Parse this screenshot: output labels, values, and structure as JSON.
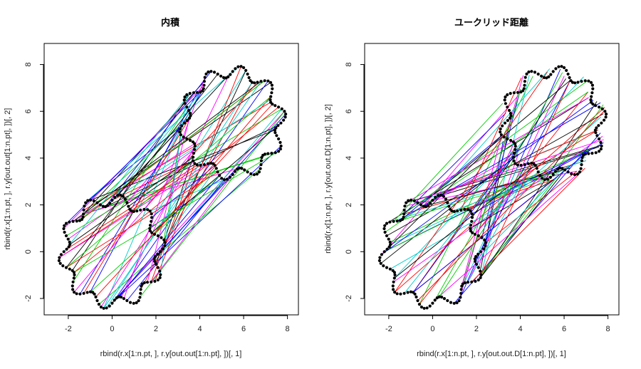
{
  "chart_data": [
    {
      "type": "scatter",
      "title": "内積",
      "xlabel": "rbind(r.x[1:n.pt, ], r.y[out.out[1:n.pt], ])[, 1]",
      "ylabel": "rbind(r.x[1:n.pt, ], r.y[out.out[1:n.pt], ])[, 2]",
      "xlim": [
        -3.1,
        8.5
      ],
      "ylim": [
        -2.7,
        8.9
      ],
      "xticks": [
        "-2",
        "0",
        "2",
        "4",
        "6",
        "8"
      ],
      "yticks": [
        "-2",
        "0",
        "2",
        "4",
        "6",
        "8"
      ],
      "grid": false,
      "shape": {
        "center_a": [
          0.0,
          0.0
        ],
        "center_b": [
          5.5,
          5.5
        ],
        "radius": 2.2,
        "bumps": 10,
        "amplitude": 0.25,
        "points": 120
      },
      "segments": {
        "count": 80,
        "seed": 11,
        "rotation": 0.0,
        "x_shift": 0.0,
        "colors": [
          "#000000",
          "#ff0000",
          "#00cd00",
          "#0000ff",
          "#00cdcd",
          "#ff00ff"
        ]
      }
    },
    {
      "type": "scatter",
      "title": "ユークリッド距離",
      "xlabel": "rbind(r.x[1:n.pt, ], r.y[out.out.D[1:n.pt], ])[, 1]",
      "ylabel": "rbind(r.x[1:n.pt, ], r.y[out.out.D[1:n.pt], ])[, 2]",
      "xlim": [
        -3.1,
        8.5
      ],
      "ylim": [
        -2.7,
        8.9
      ],
      "xticks": [
        "-2",
        "0",
        "2",
        "4",
        "6",
        "8"
      ],
      "yticks": [
        "-2",
        "0",
        "2",
        "4",
        "6",
        "8"
      ],
      "grid": false,
      "shape": {
        "center_a": [
          0.0,
          0.0
        ],
        "center_b": [
          5.5,
          5.5
        ],
        "radius": 2.2,
        "bumps": 10,
        "amplitude": 0.25,
        "points": 120
      },
      "segments": {
        "count": 80,
        "seed": 29,
        "rotation": 0.12,
        "x_shift": 0.0,
        "colors": [
          "#000000",
          "#ff0000",
          "#00cd00",
          "#0000ff",
          "#00cdcd",
          "#ff00ff"
        ]
      }
    }
  ]
}
